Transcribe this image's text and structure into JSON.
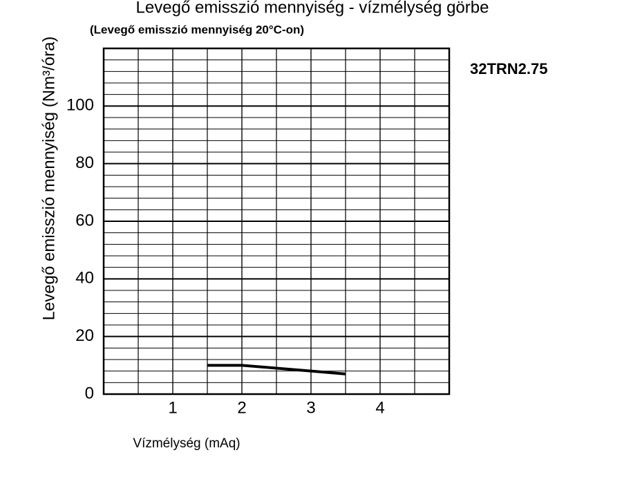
{
  "chart_data": {
    "type": "line",
    "title": "Levegő emisszió mennyiség - vízmélység görbe",
    "subtitle": "(Levegő emisszió mennyiség 20°C-on)",
    "annotation": "32TRN2.75",
    "x_label": "Vízmélység (mAq)",
    "y_label": "Levegő emisszió mennyiség (Nm³/óra)",
    "x": [
      1.5,
      2,
      2.5,
      3,
      3.5
    ],
    "series": [
      {
        "name": "32TRN2.75",
        "color": "#000000",
        "values": [
          10,
          10,
          9,
          8,
          7
        ]
      }
    ],
    "xlim": [
      0,
      5
    ],
    "xticks": [
      1,
      2,
      3,
      4
    ],
    "ylim": [
      0,
      120
    ],
    "yticks": [
      0,
      20,
      40,
      60,
      80,
      100
    ],
    "grid": true
  }
}
